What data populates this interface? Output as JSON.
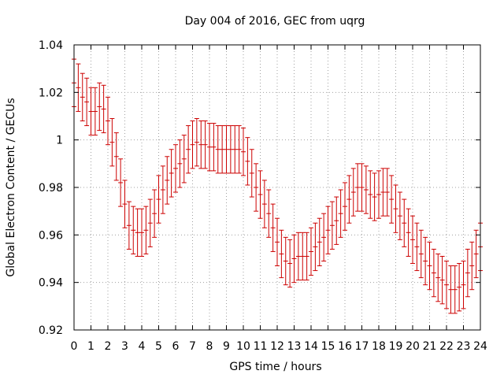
{
  "chart_data": {
    "type": "scatter",
    "title": "Day 004 of 2016, GEC from uqrg",
    "xlabel": "GPS time / hours",
    "ylabel": "Global Electron Content / GECUs",
    "xlim": [
      0,
      24
    ],
    "ylim": [
      0.92,
      1.04
    ],
    "x_ticks": [
      "0",
      "1",
      "2",
      "3",
      "4",
      "5",
      "6",
      "7",
      "8",
      "9",
      "10",
      "11",
      "12",
      "13",
      "14",
      "15",
      "16",
      "17",
      "18",
      "19",
      "20",
      "21",
      "22",
      "23",
      "24"
    ],
    "y_ticks": [
      "0.92",
      "0.94",
      "0.96",
      "0.98",
      "1",
      "1.02",
      "1.04"
    ],
    "grid": true,
    "legend": "none",
    "colors": {
      "series": "#cc0000",
      "grid": "#a0a0a0",
      "axis": "#000000"
    },
    "series": [
      {
        "error": 0.01,
        "x": [
          0.0,
          0.25,
          0.5,
          0.75,
          1.0,
          1.25,
          1.5,
          1.75,
          2.0,
          2.25,
          2.5,
          2.75,
          3.0,
          3.25,
          3.5,
          3.75,
          4.0,
          4.25,
          4.5,
          4.75,
          5.0,
          5.25,
          5.5,
          5.75,
          6.0,
          6.25,
          6.5,
          6.75,
          7.0,
          7.25,
          7.5,
          7.75,
          8.0,
          8.25,
          8.5,
          8.75,
          9.0,
          9.25,
          9.5,
          9.75,
          10.0,
          10.25,
          10.5,
          10.75,
          11.0,
          11.25,
          11.5,
          11.75,
          12.0,
          12.25,
          12.5,
          12.75,
          13.0,
          13.25,
          13.5,
          13.75,
          14.0,
          14.25,
          14.5,
          14.75,
          15.0,
          15.25,
          15.5,
          15.75,
          16.0,
          16.25,
          16.5,
          16.75,
          17.0,
          17.25,
          17.5,
          17.75,
          18.0,
          18.25,
          18.5,
          18.75,
          19.0,
          19.25,
          19.5,
          19.75,
          20.0,
          20.25,
          20.5,
          20.75,
          21.0,
          21.25,
          21.5,
          21.75,
          22.0,
          22.25,
          22.5,
          22.75,
          23.0,
          23.25,
          23.5,
          23.75,
          24.0
        ],
        "y": [
          1.024,
          1.022,
          1.018,
          1.016,
          1.012,
          1.012,
          1.014,
          1.013,
          1.008,
          0.999,
          0.993,
          0.982,
          0.973,
          0.964,
          0.962,
          0.961,
          0.961,
          0.962,
          0.965,
          0.969,
          0.975,
          0.979,
          0.983,
          0.986,
          0.988,
          0.99,
          0.992,
          0.996,
          0.998,
          0.999,
          0.998,
          0.998,
          0.997,
          0.997,
          0.996,
          0.996,
          0.996,
          0.996,
          0.996,
          0.996,
          0.995,
          0.991,
          0.986,
          0.98,
          0.977,
          0.973,
          0.969,
          0.963,
          0.957,
          0.952,
          0.949,
          0.948,
          0.95,
          0.951,
          0.951,
          0.951,
          0.953,
          0.955,
          0.957,
          0.959,
          0.962,
          0.964,
          0.966,
          0.969,
          0.972,
          0.975,
          0.978,
          0.98,
          0.98,
          0.979,
          0.977,
          0.976,
          0.977,
          0.978,
          0.978,
          0.975,
          0.971,
          0.968,
          0.965,
          0.961,
          0.958,
          0.955,
          0.952,
          0.949,
          0.947,
          0.944,
          0.942,
          0.941,
          0.939,
          0.937,
          0.937,
          0.938,
          0.939,
          0.944,
          0.947,
          0.952,
          0.955
        ]
      }
    ]
  }
}
